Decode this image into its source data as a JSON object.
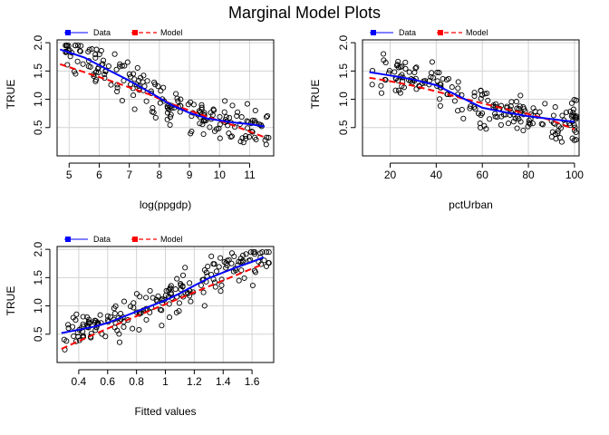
{
  "figure_title": "Marginal Model Plots",
  "legend": {
    "data_label": "Data",
    "model_label": "Model",
    "data_color": "#0000ff",
    "model_color": "#ff0000"
  },
  "chart_data": [
    {
      "type": "scatter",
      "title": "",
      "xlabel": "log(ppgdp)",
      "ylabel": "TRUE",
      "xlim": [
        4.6,
        11.8
      ],
      "ylim": [
        0.0,
        2.05
      ],
      "xticks": [
        5,
        6,
        7,
        8,
        9,
        10,
        11
      ],
      "yticks": [
        0.5,
        1.0,
        1.5,
        2.0
      ],
      "grid": true,
      "legend_position": "top-left",
      "data_curve": [
        [
          4.7,
          1.88
        ],
        [
          5.5,
          1.74
        ],
        [
          6.3,
          1.52
        ],
        [
          7.0,
          1.33
        ],
        [
          7.7,
          1.12
        ],
        [
          8.4,
          0.9
        ],
        [
          9.0,
          0.76
        ],
        [
          9.6,
          0.66
        ],
        [
          10.3,
          0.6
        ],
        [
          11.0,
          0.56
        ],
        [
          11.5,
          0.52
        ]
      ],
      "model_curve": [
        [
          4.7,
          1.62
        ],
        [
          5.5,
          1.48
        ],
        [
          6.3,
          1.34
        ],
        [
          7.0,
          1.21
        ],
        [
          7.7,
          1.08
        ],
        [
          8.4,
          0.92
        ],
        [
          9.0,
          0.8
        ],
        [
          9.6,
          0.69
        ],
        [
          10.3,
          0.57
        ],
        [
          11.0,
          0.43
        ],
        [
          11.5,
          0.33
        ]
      ]
    },
    {
      "type": "scatter",
      "title": "",
      "xlabel": "pctUrban",
      "ylabel": "TRUE",
      "xlim": [
        8,
        102
      ],
      "ylim": [
        0.0,
        2.05
      ],
      "xticks": [
        20,
        40,
        60,
        80,
        100
      ],
      "yticks": [
        0.5,
        1.0,
        1.5,
        2.0
      ],
      "grid": true,
      "legend_position": "top-left",
      "data_curve": [
        [
          11,
          1.48
        ],
        [
          20,
          1.42
        ],
        [
          30,
          1.35
        ],
        [
          40,
          1.25
        ],
        [
          50,
          1.05
        ],
        [
          55,
          0.95
        ],
        [
          60,
          0.85
        ],
        [
          70,
          0.77
        ],
        [
          80,
          0.7
        ],
        [
          90,
          0.65
        ],
        [
          100,
          0.6
        ]
      ],
      "model_curve": [
        [
          11,
          1.38
        ],
        [
          20,
          1.32
        ],
        [
          30,
          1.24
        ],
        [
          40,
          1.14
        ],
        [
          50,
          1.03
        ],
        [
          60,
          0.93
        ],
        [
          70,
          0.83
        ],
        [
          80,
          0.74
        ],
        [
          90,
          0.63
        ],
        [
          100,
          0.47
        ]
      ]
    },
    {
      "type": "scatter",
      "title": "",
      "xlabel": "Fitted values",
      "ylabel": "TRUE",
      "xlim": [
        0.25,
        1.75
      ],
      "ylim": [
        0.0,
        2.05
      ],
      "xticks": [
        0.4,
        0.6,
        0.8,
        1.0,
        1.2,
        1.4,
        1.6
      ],
      "yticks": [
        0.5,
        1.0,
        1.5,
        2.0
      ],
      "grid": true,
      "legend_position": "top-left",
      "data_curve": [
        [
          0.28,
          0.52
        ],
        [
          0.4,
          0.58
        ],
        [
          0.5,
          0.63
        ],
        [
          0.6,
          0.7
        ],
        [
          0.7,
          0.8
        ],
        [
          0.8,
          0.9
        ],
        [
          0.9,
          1.0
        ],
        [
          1.0,
          1.1
        ],
        [
          1.1,
          1.22
        ],
        [
          1.2,
          1.36
        ],
        [
          1.3,
          1.49
        ],
        [
          1.4,
          1.59
        ],
        [
          1.5,
          1.69
        ],
        [
          1.6,
          1.78
        ],
        [
          1.68,
          1.86
        ]
      ],
      "model_curve": [
        [
          0.28,
          0.24
        ],
        [
          0.4,
          0.38
        ],
        [
          0.6,
          0.6
        ],
        [
          0.8,
          0.82
        ],
        [
          1.0,
          1.03
        ],
        [
          1.2,
          1.24
        ],
        [
          1.4,
          1.45
        ],
        [
          1.6,
          1.66
        ],
        [
          1.68,
          1.74
        ]
      ]
    }
  ]
}
